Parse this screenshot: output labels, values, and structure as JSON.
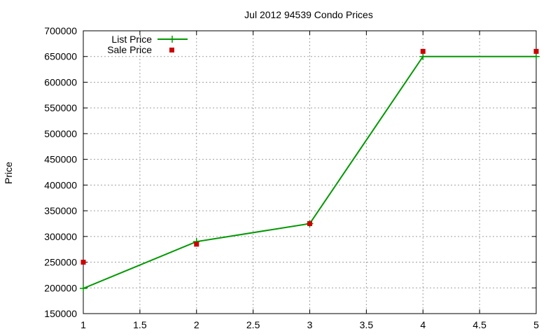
{
  "chart_data": {
    "type": "line",
    "title": "Jul 2012 94539 Condo Prices",
    "xlabel": "",
    "ylabel": "Price",
    "xlim": [
      1,
      5
    ],
    "ylim": [
      150000,
      700000
    ],
    "x_ticks": [
      "1",
      "1.5",
      "2",
      "2.5",
      "3",
      "3.5",
      "4",
      "4.5",
      "5"
    ],
    "y_ticks": [
      "150000",
      "200000",
      "250000",
      "300000",
      "350000",
      "400000",
      "450000",
      "500000",
      "550000",
      "600000",
      "650000",
      "700000"
    ],
    "grid": true,
    "legend_position": "top-left",
    "series": [
      {
        "name": "List Price",
        "style": "lines+points",
        "marker": "plus",
        "color": "#009900",
        "x": [
          1,
          2,
          3,
          4,
          5
        ],
        "y": [
          199000,
          290000,
          325000,
          650000,
          650000
        ]
      },
      {
        "name": "Sale Price",
        "style": "points",
        "marker": "square",
        "color": "#cc0000",
        "x": [
          1,
          2,
          3,
          4,
          5
        ],
        "y": [
          250000,
          285000,
          325000,
          660000,
          660000
        ]
      }
    ]
  }
}
